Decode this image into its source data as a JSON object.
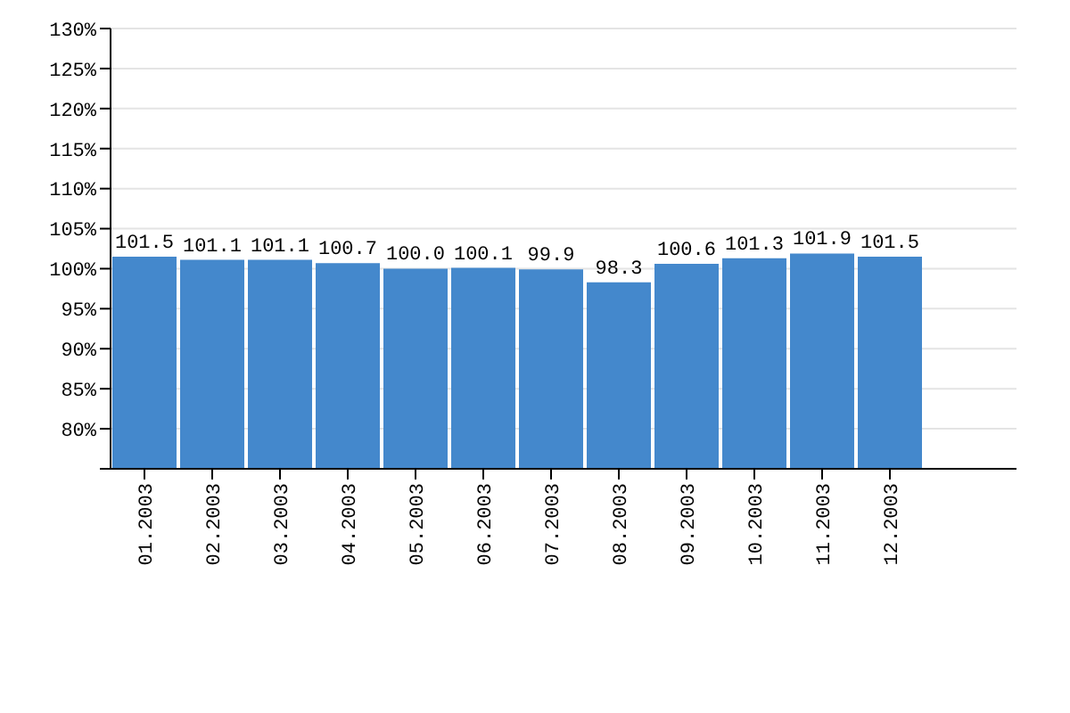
{
  "chart_data": {
    "type": "bar",
    "categories": [
      "01.2003",
      "02.2003",
      "03.2003",
      "04.2003",
      "05.2003",
      "06.2003",
      "07.2003",
      "08.2003",
      "09.2003",
      "10.2003",
      "11.2003",
      "12.2003"
    ],
    "values": [
      101.5,
      101.1,
      101.1,
      100.7,
      100.0,
      100.1,
      99.9,
      98.3,
      100.6,
      101.3,
      101.9,
      101.5
    ],
    "value_labels": [
      "101.5",
      "101.1",
      "101.1",
      "100.7",
      "100.0",
      "100.1",
      "99.9",
      "98.3",
      "100.6",
      "101.3",
      "101.9",
      "101.5"
    ],
    "color": "#4488cc",
    "ylim": [
      75,
      130
    ],
    "yticks": [
      {
        "value": 75,
        "label": null
      },
      {
        "value": 80,
        "label": "80%"
      },
      {
        "value": 85,
        "label": "85%"
      },
      {
        "value": 90,
        "label": "90%"
      },
      {
        "value": 95,
        "label": "95%"
      },
      {
        "value": 100,
        "label": "100%"
      },
      {
        "value": 105,
        "label": "105%"
      },
      {
        "value": 110,
        "label": "110%"
      },
      {
        "value": 115,
        "label": "115%"
      },
      {
        "value": 120,
        "label": "120%"
      },
      {
        "value": 125,
        "label": "125%"
      },
      {
        "value": 130,
        "label": "130%"
      }
    ],
    "grid": "y",
    "legend": false
  }
}
